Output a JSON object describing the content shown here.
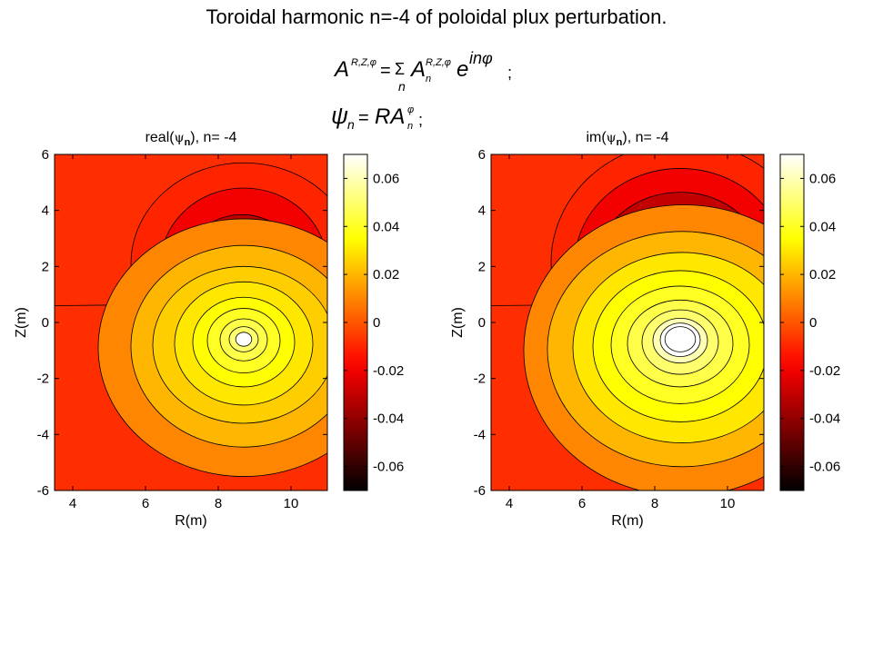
{
  "page": {
    "title": "Toroidal harmonic n=-4  of poloidal plux perturbation.",
    "formula_lines": [
      "A^{R,Z,φ} = Σ_n A_n^{R,Z,φ} e^{inφ};",
      "ψ_n = R A_n^{φ};"
    ]
  },
  "chart_data": [
    {
      "type": "heatmap",
      "subtype": "filled-contour",
      "title": "real(ψ_n), n= -4",
      "title_parts": {
        "pre": "real(",
        "sym": "ψ",
        "sub": "n",
        "post": "), n= -4"
      },
      "xlabel": "R(m)",
      "ylabel": "Z(m)",
      "xlim": [
        3.5,
        11
      ],
      "ylim": [
        -6,
        6
      ],
      "xticks": [
        4,
        6,
        8,
        10
      ],
      "yticks": [
        -6,
        -4,
        -2,
        0,
        2,
        4,
        6
      ],
      "colorbar": {
        "colormap": "hot",
        "clim": [
          -0.07,
          0.07
        ],
        "ticks": [
          -0.06,
          -0.04,
          -0.02,
          0,
          0.02,
          0.04,
          0.06
        ]
      },
      "separatrix_z": [
        0.6,
        0.7
      ],
      "minimum": {
        "R": 8.6,
        "Z": 1.9,
        "value": -0.07,
        "core_rx": 0.15,
        "core_ry": 0.15
      },
      "maximum": {
        "R": 8.7,
        "Z": -0.6,
        "value": 0.07,
        "core_rx": 0.22,
        "core_ry": 0.25
      },
      "upper_contours": [
        {
          "rx": 3.1,
          "ry": 3.6,
          "cR": 8.7,
          "cZ": 2.1,
          "level": -0.01
        },
        {
          "rx": 2.3,
          "ry": 2.8,
          "cR": 8.7,
          "cZ": 2.0,
          "level": -0.02
        },
        {
          "rx": 1.6,
          "ry": 1.9,
          "cR": 8.65,
          "cZ": 1.95,
          "level": -0.03
        },
        {
          "rx": 1.05,
          "ry": 1.3,
          "cR": 8.6,
          "cZ": 1.9,
          "level": -0.04
        },
        {
          "rx": 0.75,
          "ry": 0.85,
          "cR": 8.6,
          "cZ": 1.9,
          "level": -0.05
        },
        {
          "rx": 0.45,
          "ry": 0.55,
          "cR": 8.6,
          "cZ": 1.9,
          "level": -0.07
        }
      ],
      "lower_contours": [
        {
          "rx": 4.0,
          "ry": 4.6,
          "cR": 8.7,
          "cZ": -0.9,
          "level": 0.01
        },
        {
          "rx": 3.1,
          "ry": 3.6,
          "cR": 8.7,
          "cZ": -0.85,
          "level": 0.02
        },
        {
          "rx": 2.5,
          "ry": 2.8,
          "cR": 8.7,
          "cZ": -0.8,
          "level": 0.025
        },
        {
          "rx": 1.9,
          "ry": 2.2,
          "cR": 8.7,
          "cZ": -0.75,
          "level": 0.03
        },
        {
          "rx": 1.4,
          "ry": 1.6,
          "cR": 8.7,
          "cZ": -0.7,
          "level": 0.035
        },
        {
          "rx": 1.0,
          "ry": 1.15,
          "cR": 8.7,
          "cZ": -0.65,
          "level": 0.04
        },
        {
          "rx": 0.65,
          "ry": 0.75,
          "cR": 8.7,
          "cZ": -0.62,
          "level": 0.045
        },
        {
          "rx": 0.4,
          "ry": 0.45,
          "cR": 8.7,
          "cZ": -0.6,
          "level": 0.05
        }
      ]
    },
    {
      "type": "heatmap",
      "subtype": "filled-contour",
      "title": "im(ψ_n), n= -4",
      "title_parts": {
        "pre": "im(",
        "sym": "ψ",
        "sub": "n",
        "post": "), n= -4"
      },
      "xlabel": "R(m)",
      "ylabel": "Z(m)",
      "xlim": [
        3.5,
        11
      ],
      "ylim": [
        -6,
        6
      ],
      "xticks": [
        4,
        6,
        8,
        10
      ],
      "yticks": [
        -6,
        -4,
        -2,
        0,
        2,
        4,
        6
      ],
      "colorbar": {
        "colormap": "hot",
        "clim": [
          -0.07,
          0.07
        ],
        "ticks": [
          -0.06,
          -0.04,
          -0.02,
          0,
          0.02,
          0.04,
          0.06
        ]
      },
      "separatrix_z": [
        0.6,
        0.7
      ],
      "minimum": {
        "R": 8.6,
        "Z": 1.9,
        "value": -0.07,
        "core_rx": 0.42,
        "core_ry": 0.48
      },
      "maximum": {
        "R": 8.7,
        "Z": -0.6,
        "value": 0.07,
        "core_rx": 0.42,
        "core_ry": 0.45
      },
      "upper_contours": [
        {
          "rx": 3.6,
          "ry": 4.3,
          "cR": 8.75,
          "cZ": 2.15,
          "level": -0.01
        },
        {
          "rx": 2.9,
          "ry": 3.4,
          "cR": 8.7,
          "cZ": 2.1,
          "level": -0.02
        },
        {
          "rx": 2.3,
          "ry": 2.6,
          "cR": 8.7,
          "cZ": 2.05,
          "level": -0.03
        },
        {
          "rx": 1.8,
          "ry": 1.95,
          "cR": 8.65,
          "cZ": 2.0,
          "level": -0.04
        },
        {
          "rx": 1.35,
          "ry": 1.4,
          "cR": 8.65,
          "cZ": 1.95,
          "level": -0.05
        },
        {
          "rx": 0.95,
          "ry": 0.95,
          "cR": 8.6,
          "cZ": 1.9,
          "level": -0.06
        },
        {
          "rx": 0.7,
          "ry": 0.75,
          "cR": 8.6,
          "cZ": 1.9,
          "level": -0.07
        }
      ],
      "lower_contours": [
        {
          "rx": 4.4,
          "ry": 5.2,
          "cR": 8.8,
          "cZ": -1.0,
          "level": 0.01
        },
        {
          "rx": 3.7,
          "ry": 4.2,
          "cR": 8.75,
          "cZ": -0.95,
          "level": 0.02
        },
        {
          "rx": 3.0,
          "ry": 3.4,
          "cR": 8.75,
          "cZ": -0.9,
          "level": 0.03
        },
        {
          "rx": 2.4,
          "ry": 2.7,
          "cR": 8.7,
          "cZ": -0.85,
          "level": 0.035
        },
        {
          "rx": 1.9,
          "ry": 2.1,
          "cR": 8.7,
          "cZ": -0.8,
          "level": 0.04
        },
        {
          "rx": 1.45,
          "ry": 1.55,
          "cR": 8.7,
          "cZ": -0.75,
          "level": 0.045
        },
        {
          "rx": 1.05,
          "ry": 1.15,
          "cR": 8.7,
          "cZ": -0.7,
          "level": 0.05
        },
        {
          "rx": 0.75,
          "ry": 0.8,
          "cR": 8.7,
          "cZ": -0.65,
          "level": 0.06
        },
        {
          "rx": 0.55,
          "ry": 0.6,
          "cR": 8.7,
          "cZ": -0.62,
          "level": 0.07
        }
      ]
    }
  ]
}
